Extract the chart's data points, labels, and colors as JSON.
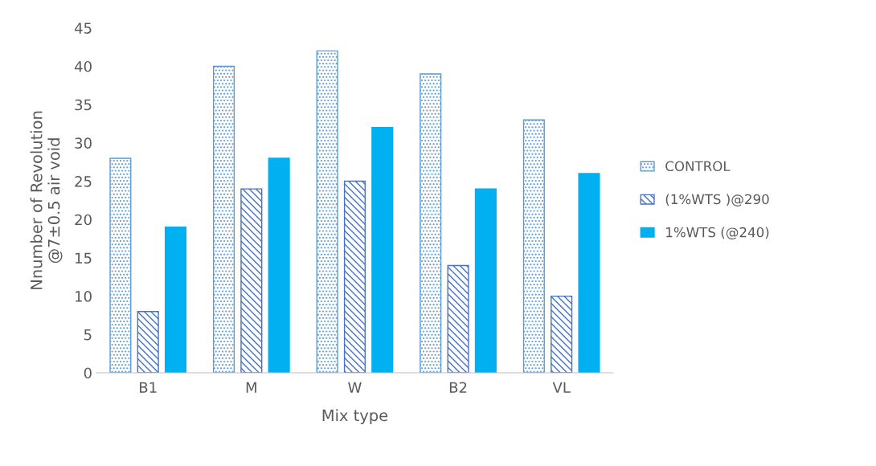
{
  "chart_data": {
    "type": "bar",
    "xlabel": "Mix type",
    "ylabel": "Nnumber of Revolution\n@7±0.5 air void",
    "categories": [
      "B1",
      "M",
      "W",
      "B2",
      "VL"
    ],
    "series": [
      {
        "name": "CONTROL",
        "color": "#5b9bd5",
        "values": [
          28,
          40,
          42,
          39,
          33
        ]
      },
      {
        "name": "(1%WTS )@290",
        "color": "#4472c4",
        "values": [
          8,
          24,
          25,
          14,
          10
        ]
      },
      {
        "name": "1%WTS (@240)",
        "color": "#00b0f0",
        "values": [
          19,
          28,
          32,
          24,
          26
        ]
      }
    ],
    "ylim": [
      0,
      45
    ],
    "yticks": [
      0,
      5,
      10,
      15,
      20,
      25,
      30,
      35,
      40,
      45
    ],
    "grid": false,
    "legend": "right"
  }
}
